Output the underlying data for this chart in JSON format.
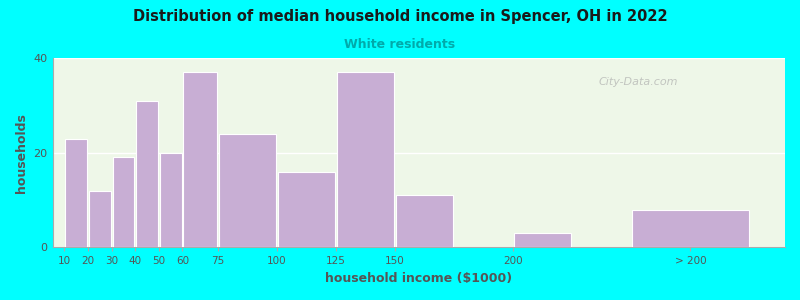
{
  "title": "Distribution of median household income in Spencer, OH in 2022",
  "subtitle": "White residents",
  "xlabel": "household income ($1000)",
  "ylabel": "households",
  "background_outer": "#00FFFF",
  "background_inner": "#eef7e8",
  "bar_color": "#c8aed4",
  "bar_edge_color": "#ffffff",
  "title_color": "#1a1a1a",
  "subtitle_color": "#00aaaa",
  "axis_label_color": "#555555",
  "tick_label_color": "#555555",
  "values": [
    23,
    12,
    19,
    31,
    20,
    37,
    24,
    16,
    37,
    11,
    3,
    8
  ],
  "bar_lefts": [
    10,
    20,
    30,
    40,
    50,
    60,
    75,
    100,
    125,
    150,
    200,
    250
  ],
  "bar_widths": [
    10,
    10,
    10,
    10,
    10,
    15,
    25,
    25,
    25,
    25,
    25,
    50
  ],
  "xlim": [
    5,
    315
  ],
  "ylim": [
    0,
    40
  ],
  "yticks": [
    0,
    20,
    40
  ],
  "xtick_positions": [
    10,
    20,
    30,
    40,
    50,
    60,
    75,
    100,
    125,
    150,
    200,
    275
  ],
  "xtick_labels": [
    "10",
    "20",
    "30",
    "40",
    "50",
    "60",
    "75",
    "100",
    "125",
    "150",
    "200",
    "> 200"
  ],
  "watermark": "City-Data.com"
}
